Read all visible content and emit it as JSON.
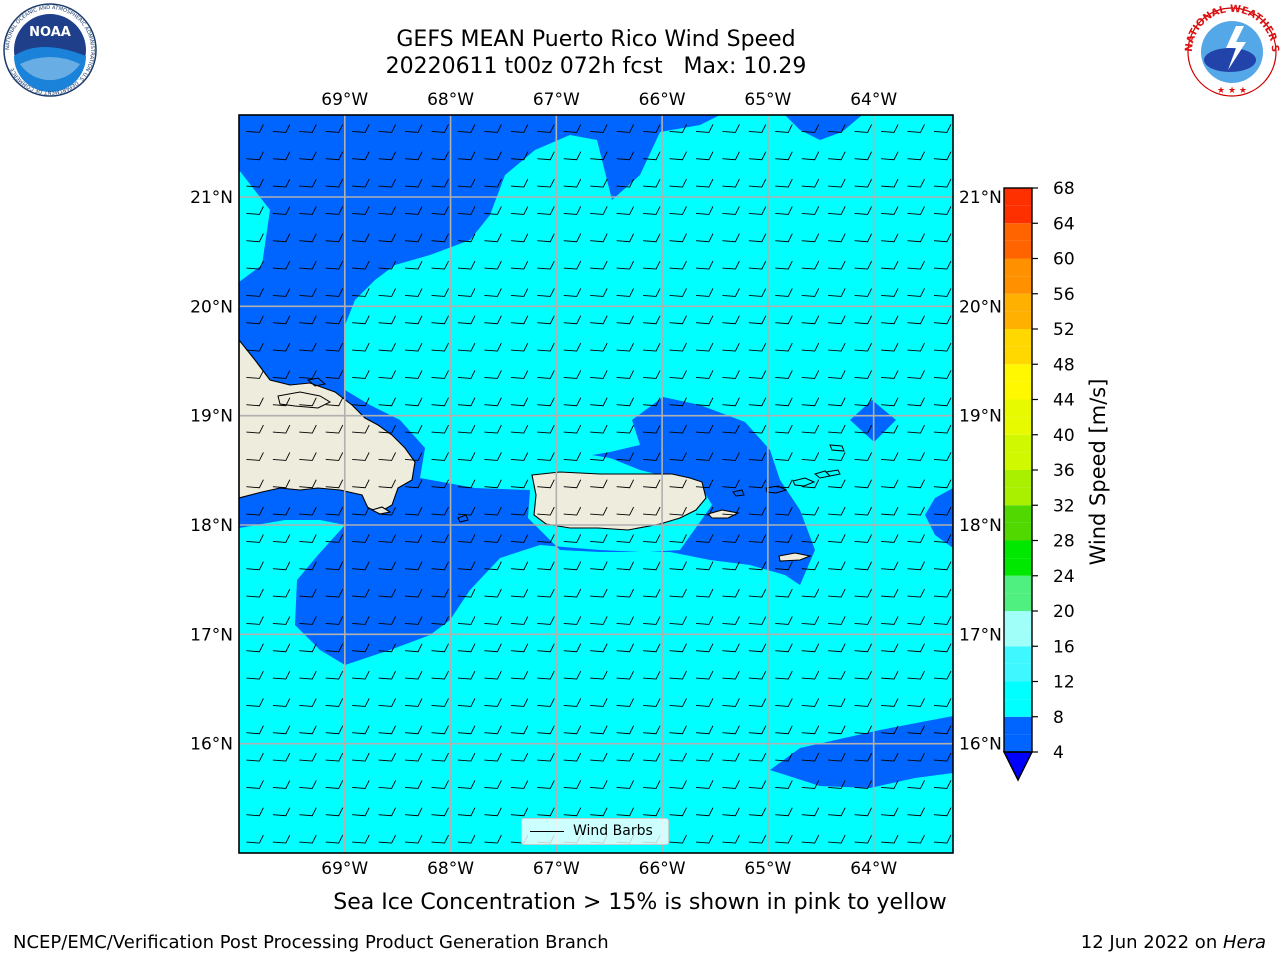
{
  "header": {
    "title_line1": "GEFS MEAN Puerto Rico Wind Speed",
    "title_line2": "20220611 t00z 072h fcst   Max: 10.29"
  },
  "logos": {
    "left": {
      "name": "noaa-logo",
      "text": "NOAA",
      "ring_text": "NATIONAL OCEANIC AND ATMOSPHERIC ADMINISTRATION  U.S. DEPARTMENT OF COMMERCE"
    },
    "right": {
      "name": "nws-logo",
      "ring_text": "NATIONAL WEATHER SERVICE"
    }
  },
  "map": {
    "lon_labels": [
      "69°W",
      "68°W",
      "67°W",
      "66°W",
      "65°W",
      "64°W"
    ],
    "lat_labels": [
      "21°N",
      "20°N",
      "19°N",
      "18°N",
      "17°N",
      "16°N"
    ],
    "extent": {
      "lon": [
        -70.0,
        -63.25
      ],
      "lat": [
        15.0,
        21.75
      ]
    },
    "barbs": {
      "lon_start": -69.93,
      "lat_start": 15.1,
      "spacing_deg": 0.25,
      "wind_from": "east"
    },
    "colors": {
      "land": "#eeecdc",
      "coast": "#000000",
      "grid": "#b0b0b0"
    }
  },
  "colorbar": {
    "label": "Wind Speed [m/s]",
    "ticks": [
      "4",
      "8",
      "12",
      "16",
      "20",
      "24",
      "28",
      "32",
      "36",
      "40",
      "44",
      "48",
      "52",
      "56",
      "60",
      "64",
      "68"
    ],
    "levels": [
      4,
      6,
      8,
      10,
      12,
      14,
      16,
      18,
      20,
      22,
      24,
      26,
      28,
      30,
      32,
      34,
      36,
      38,
      40,
      42,
      44,
      46,
      48,
      50,
      52,
      54,
      56,
      58,
      60,
      62,
      64,
      66,
      68
    ],
    "colors": [
      "#0064ff",
      "#0064ff",
      "#00ffff",
      "#00ffff",
      "#3ff8ff",
      "#3ff8ff",
      "#a0fff8",
      "#a0fff8",
      "#50f080",
      "#50f080",
      "#00e800",
      "#00e800",
      "#50d800",
      "#50d800",
      "#a8f000",
      "#a8f000",
      "#d0f800",
      "#d0f800",
      "#e8fa00",
      "#e8fa00",
      "#fff800",
      "#fff800",
      "#ffd800",
      "#ffd800",
      "#ffb000",
      "#ffb000",
      "#ff9000",
      "#ff9000",
      "#ff6400",
      "#ff6400",
      "#ff3000",
      "#ff3000"
    ],
    "under_color": "#0000ff"
  },
  "legend": {
    "label": "Wind Barbs"
  },
  "note": "Sea Ice Concentration > 15% is shown in pink to yellow",
  "footer": {
    "left": "NCEP/EMC/Verification Post Processing Product Generation Branch",
    "right_prefix": "12 Jun 2022 on ",
    "right_host": "Hera"
  }
}
